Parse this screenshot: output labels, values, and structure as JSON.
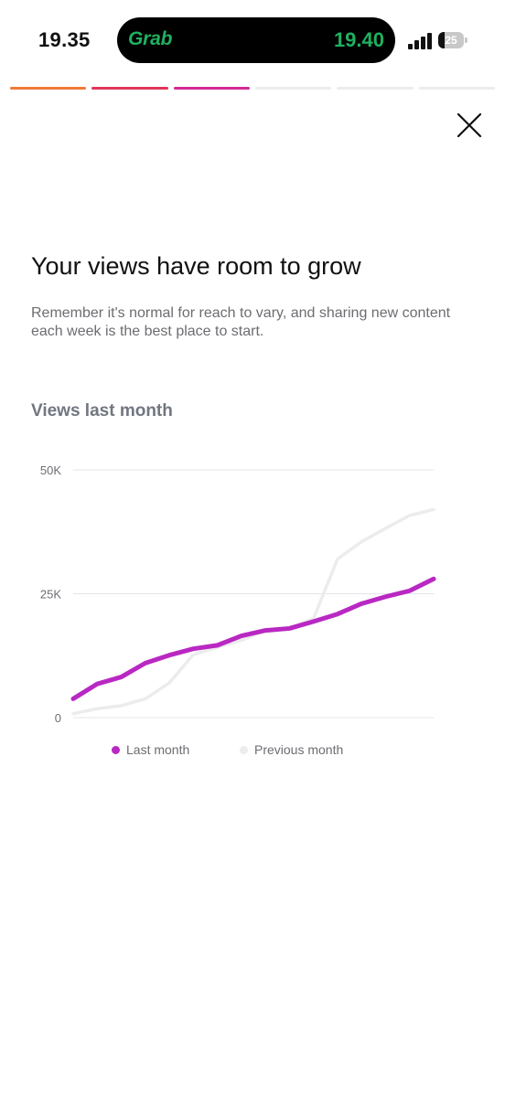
{
  "status_bar": {
    "time": "19.35",
    "live_activity": {
      "app_logo_text": "Grab",
      "eta_time": "19.40",
      "logo_color": "#1fb160"
    },
    "signal_icon": "cellular-signal-icon",
    "battery": {
      "level_text": "25",
      "level_percent": 25
    }
  },
  "story_progress": {
    "segments": [
      {
        "fill_fraction": 1,
        "color": "#ef7b39"
      },
      {
        "fill_fraction": 1,
        "color": "#e0365a"
      },
      {
        "fill_fraction": 1,
        "color": "#d42a94"
      },
      {
        "fill_fraction": 0,
        "color": "#ececec"
      },
      {
        "fill_fraction": 0,
        "color": "#ececec"
      },
      {
        "fill_fraction": 0,
        "color": "#ececec"
      }
    ]
  },
  "close_icon": "close-x-icon",
  "headline": "Your views have room to grow",
  "subtext": "Remember it's normal for reach to vary, and sharing new content each week is the best place to start.",
  "chart_title": "Views last month",
  "chart_data": {
    "type": "line",
    "title": "Views last month",
    "xlabel": "",
    "ylabel": "",
    "ylim": [
      0,
      50000
    ],
    "y_ticks": [
      {
        "value": 50000,
        "label": "50K"
      },
      {
        "value": 25000,
        "label": "25K"
      },
      {
        "value": 0,
        "label": "0"
      }
    ],
    "x": [
      1,
      2,
      3,
      4,
      5,
      6,
      7,
      8,
      9,
      10,
      11,
      12,
      13,
      14,
      15,
      16
    ],
    "grid": true,
    "legend_placement": "bottom",
    "series": [
      {
        "name": "Last month",
        "color": "#b928c3",
        "values": [
          3800,
          6800,
          8200,
          11000,
          12600,
          13900,
          14600,
          16500,
          17600,
          18000,
          19400,
          20900,
          23000,
          24400,
          25600,
          28000
        ]
      },
      {
        "name": "Previous month",
        "color": "#ececec",
        "values": [
          800,
          1800,
          2400,
          3800,
          7000,
          12700,
          14200,
          15600,
          17600,
          18000,
          20000,
          32000,
          35500,
          38200,
          40800,
          42000
        ]
      }
    ]
  }
}
